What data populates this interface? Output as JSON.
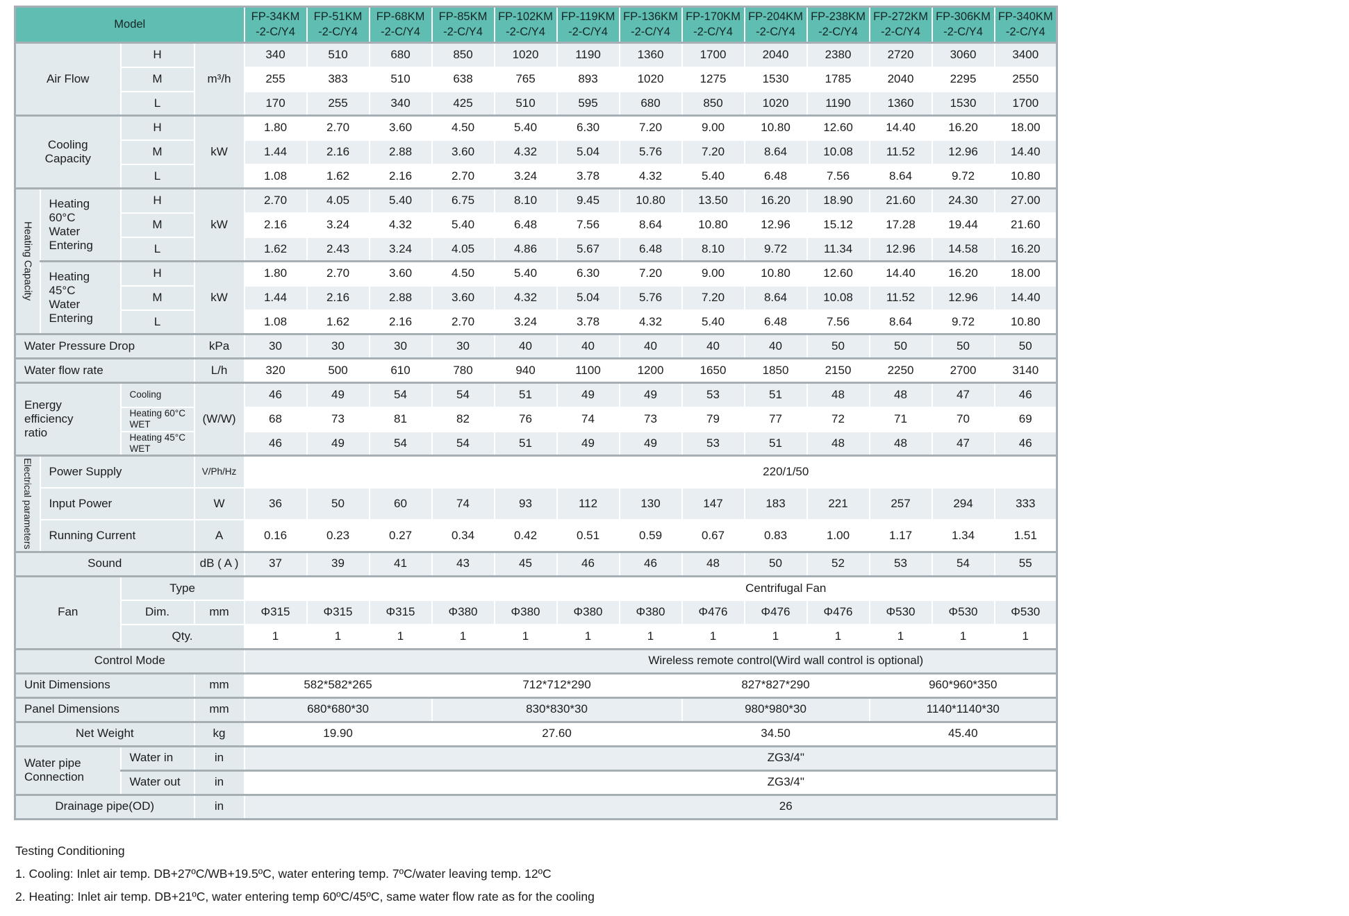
{
  "colors": {
    "header_teal": "#5FBDB2",
    "row_stripe": "#E8EEF1",
    "label_background": "#E2EAEE",
    "grid_line": "#A6AFB4"
  },
  "table": {
    "corner": "Model",
    "columns": [
      "FP-34KM\n-2-C/Y4",
      "FP-51KM\n-2-C/Y4",
      "FP-68KM\n-2-C/Y4",
      "FP-85KM\n-2-C/Y4",
      "FP-102KM\n-2-C/Y4",
      "FP-119KM\n-2-C/Y4",
      "FP-136KM\n-2-C/Y4",
      "FP-170KM\n-2-C/Y4",
      "FP-204KM\n-2-C/Y4",
      "FP-238KM\n-2-C/Y4",
      "FP-272KM\n-2-C/Y4",
      "FP-306KM\n-2-C/Y4",
      "FP-340KM\n-2-C/Y4"
    ],
    "rows": [
      {
        "id": "air-flow-h",
        "section_start": true,
        "labels": [
          {
            "text": "Air Flow",
            "colspan": 2,
            "rowspan": 3
          },
          {
            "text": "H"
          },
          {
            "text": "m³/h",
            "rowspan": 3
          }
        ],
        "values": [
          "340",
          "510",
          "680",
          "850",
          "1020",
          "1190",
          "1360",
          "1700",
          "2040",
          "2380",
          "2720",
          "3060",
          "3400"
        ]
      },
      {
        "id": "air-flow-m",
        "labels": [
          {
            "text": "M"
          }
        ],
        "values": [
          "255",
          "383",
          "510",
          "638",
          "765",
          "893",
          "1020",
          "1275",
          "1530",
          "1785",
          "2040",
          "2295",
          "2550"
        ]
      },
      {
        "id": "air-flow-l",
        "labels": [
          {
            "text": "L"
          }
        ],
        "values": [
          "170",
          "255",
          "340",
          "425",
          "510",
          "595",
          "680",
          "850",
          "1020",
          "1190",
          "1360",
          "1530",
          "1700"
        ]
      },
      {
        "id": "cooling-h",
        "section_start": true,
        "labels": [
          {
            "text": "Cooling\nCapacity",
            "colspan": 2,
            "rowspan": 3
          },
          {
            "text": "H"
          },
          {
            "text": "kW",
            "rowspan": 3
          }
        ],
        "values": [
          "1.80",
          "2.70",
          "3.60",
          "4.50",
          "5.40",
          "6.30",
          "7.20",
          "9.00",
          "10.80",
          "12.60",
          "14.40",
          "16.20",
          "18.00"
        ]
      },
      {
        "id": "cooling-m",
        "labels": [
          {
            "text": "M"
          }
        ],
        "values": [
          "1.44",
          "2.16",
          "2.88",
          "3.60",
          "4.32",
          "5.04",
          "5.76",
          "7.20",
          "8.64",
          "10.08",
          "11.52",
          "12.96",
          "14.40"
        ]
      },
      {
        "id": "cooling-l",
        "labels": [
          {
            "text": "L"
          }
        ],
        "values": [
          "1.08",
          "1.62",
          "2.16",
          "2.70",
          "3.24",
          "3.78",
          "4.32",
          "5.40",
          "6.48",
          "7.56",
          "8.64",
          "9.72",
          "10.80"
        ]
      },
      {
        "id": "heating60-h",
        "section_start": true,
        "labels": [
          {
            "text": "Heating Capacity",
            "rowspan": 6,
            "vertical": true,
            "size": 15
          },
          {
            "text": "Heating\n60°C\nWater\nEntering",
            "rowspan": 3,
            "align": "left"
          },
          {
            "text": "H"
          },
          {
            "text": "kW",
            "rowspan": 3
          }
        ],
        "values": [
          "2.70",
          "4.05",
          "5.40",
          "6.75",
          "8.10",
          "9.45",
          "10.80",
          "13.50",
          "16.20",
          "18.90",
          "21.60",
          "24.30",
          "27.00"
        ]
      },
      {
        "id": "heating60-m",
        "labels": [
          {
            "text": "M"
          }
        ],
        "values": [
          "2.16",
          "3.24",
          "4.32",
          "5.40",
          "6.48",
          "7.56",
          "8.64",
          "10.80",
          "12.96",
          "15.12",
          "17.28",
          "19.44",
          "21.60"
        ]
      },
      {
        "id": "heating60-l",
        "labels": [
          {
            "text": "L"
          }
        ],
        "values": [
          "1.62",
          "2.43",
          "3.24",
          "4.05",
          "4.86",
          "5.67",
          "6.48",
          "8.10",
          "9.72",
          "11.34",
          "12.96",
          "14.58",
          "16.20"
        ]
      },
      {
        "id": "heating45-h",
        "section_start": true,
        "labels": [
          {
            "text": "Heating\n45°C\nWater\nEntering",
            "rowspan": 3,
            "align": "left"
          },
          {
            "text": "H"
          },
          {
            "text": "kW",
            "rowspan": 3
          }
        ],
        "values": [
          "1.80",
          "2.70",
          "3.60",
          "4.50",
          "5.40",
          "6.30",
          "7.20",
          "9.00",
          "10.80",
          "12.60",
          "14.40",
          "16.20",
          "18.00"
        ]
      },
      {
        "id": "heating45-m",
        "labels": [
          {
            "text": "M"
          }
        ],
        "values": [
          "1.44",
          "2.16",
          "2.88",
          "3.60",
          "4.32",
          "5.04",
          "5.76",
          "7.20",
          "8.64",
          "10.08",
          "11.52",
          "12.96",
          "14.40"
        ]
      },
      {
        "id": "heating45-l",
        "labels": [
          {
            "text": "L"
          }
        ],
        "values": [
          "1.08",
          "1.62",
          "2.16",
          "2.70",
          "3.24",
          "3.78",
          "4.32",
          "5.40",
          "6.48",
          "7.56",
          "8.64",
          "9.72",
          "10.80"
        ]
      },
      {
        "id": "water-pressure-drop",
        "section_start": true,
        "labels": [
          {
            "text": "Water Pressure Drop",
            "colspan": 3,
            "align": "left"
          },
          {
            "text": "kPa"
          }
        ],
        "values": [
          "30",
          "30",
          "30",
          "30",
          "40",
          "40",
          "40",
          "40",
          "40",
          "50",
          "50",
          "50",
          "50"
        ]
      },
      {
        "id": "water-flow-rate",
        "section_start": true,
        "labels": [
          {
            "text": "Water flow rate",
            "colspan": 3,
            "align": "left"
          },
          {
            "text": "L/h"
          }
        ],
        "values": [
          "320",
          "500",
          "610",
          "780",
          "940",
          "1100",
          "1200",
          "1650",
          "1850",
          "2150",
          "2250",
          "2700",
          "3140"
        ]
      },
      {
        "id": "eer-cooling",
        "section_start": true,
        "labels": [
          {
            "text": "Energy\nefficiency\nratio",
            "colspan": 2,
            "rowspan": 3,
            "align": "left"
          },
          {
            "text": "Cooling",
            "align": "left",
            "small": true
          },
          {
            "text": "(W/W)",
            "rowspan": 3
          }
        ],
        "values": [
          "46",
          "49",
          "54",
          "54",
          "51",
          "49",
          "49",
          "53",
          "51",
          "48",
          "48",
          "47",
          "46"
        ]
      },
      {
        "id": "eer-heating60",
        "labels": [
          {
            "text": "Heating 60°C WET",
            "align": "left",
            "small": true
          }
        ],
        "values": [
          "68",
          "73",
          "81",
          "82",
          "76",
          "74",
          "73",
          "79",
          "77",
          "72",
          "71",
          "70",
          "69"
        ]
      },
      {
        "id": "eer-heating45",
        "labels": [
          {
            "text": "Heating 45°C WET",
            "align": "left",
            "small": true
          }
        ],
        "values": [
          "46",
          "49",
          "54",
          "54",
          "51",
          "49",
          "49",
          "53",
          "51",
          "48",
          "48",
          "47",
          "46"
        ]
      },
      {
        "id": "power-supply",
        "section_start": true,
        "labels": [
          {
            "text": "Electrical parameters",
            "rowspan": 3,
            "vertical": true
          },
          {
            "text": "Power Supply",
            "colspan": 2,
            "align": "left"
          },
          {
            "text": "V/Ph/Hz",
            "small": true
          }
        ],
        "merged": {
          "text": "220/1/50"
        }
      },
      {
        "id": "input-power",
        "labels": [
          {
            "text": "Input Power",
            "colspan": 2,
            "align": "left"
          },
          {
            "text": "W"
          }
        ],
        "values": [
          "36",
          "50",
          "60",
          "74",
          "93",
          "112",
          "130",
          "147",
          "183",
          "221",
          "257",
          "294",
          "333"
        ]
      },
      {
        "id": "running-current",
        "labels": [
          {
            "text": "Running Current",
            "colspan": 2,
            "align": "left"
          },
          {
            "text": "A"
          }
        ],
        "values": [
          "0.16",
          "0.23",
          "0.27",
          "0.34",
          "0.42",
          "0.51",
          "0.59",
          "0.67",
          "0.83",
          "1.00",
          "1.17",
          "1.34",
          "1.51"
        ]
      },
      {
        "id": "sound",
        "section_start": true,
        "labels": [
          {
            "text": "Sound",
            "colspan": 3
          },
          {
            "text": "dB ( A )"
          }
        ],
        "values": [
          "37",
          "39",
          "41",
          "43",
          "45",
          "46",
          "46",
          "48",
          "50",
          "52",
          "53",
          "54",
          "55"
        ]
      },
      {
        "id": "fan-type",
        "section_start": true,
        "labels": [
          {
            "text": "Fan",
            "colspan": 2,
            "rowspan": 3
          },
          {
            "text": "Type",
            "colspan": 2
          }
        ],
        "merged": {
          "text": "Centrifugal Fan"
        }
      },
      {
        "id": "fan-dim",
        "labels": [
          {
            "text": "Dim."
          },
          {
            "text": "mm"
          }
        ],
        "values": [
          "Φ315",
          "Φ315",
          "Φ315",
          "Φ380",
          "Φ380",
          "Φ380",
          "Φ380",
          "Φ476",
          "Φ476",
          "Φ476",
          "Φ530",
          "Φ530",
          "Φ530"
        ]
      },
      {
        "id": "fan-qty",
        "labels": [
          {
            "text": "Qty.",
            "colspan": 2
          }
        ],
        "values": [
          "1",
          "1",
          "1",
          "1",
          "1",
          "1",
          "1",
          "1",
          "1",
          "1",
          "1",
          "1",
          "1"
        ]
      },
      {
        "id": "control-mode",
        "section_start": true,
        "labels": [
          {
            "text": "Control Mode",
            "colspan": 4
          }
        ],
        "merged": {
          "text": "Wireless remote control(Wird wall control is optional)"
        }
      },
      {
        "id": "unit-dimensions",
        "section_start": true,
        "labels": [
          {
            "text": "Unit Dimensions",
            "colspan": 3,
            "align": "left"
          },
          {
            "text": "mm"
          }
        ],
        "groups": [
          {
            "text": "582*582*265",
            "span": 3
          },
          {
            "text": "712*712*290",
            "span": 4
          },
          {
            "text": "827*827*290",
            "span": 3
          },
          {
            "text": "960*960*350",
            "span": 3
          }
        ]
      },
      {
        "id": "panel-dimensions",
        "section_start": true,
        "labels": [
          {
            "text": "Panel Dimensions",
            "colspan": 3,
            "align": "left"
          },
          {
            "text": "mm"
          }
        ],
        "groups": [
          {
            "text": "680*680*30",
            "span": 3
          },
          {
            "text": "830*830*30",
            "span": 4
          },
          {
            "text": "980*980*30",
            "span": 3
          },
          {
            "text": "1140*1140*30",
            "span": 3
          }
        ]
      },
      {
        "id": "net-weight",
        "section_start": true,
        "labels": [
          {
            "text": "Net Weight",
            "colspan": 3
          },
          {
            "text": "kg"
          }
        ],
        "groups": [
          {
            "text": "19.90",
            "span": 3
          },
          {
            "text": "27.60",
            "span": 4
          },
          {
            "text": "34.50",
            "span": 3
          },
          {
            "text": "45.40",
            "span": 3
          }
        ]
      },
      {
        "id": "water-in",
        "section_start": true,
        "labels": [
          {
            "text": "Water pipe\nConnection",
            "colspan": 2,
            "rowspan": 2,
            "align": "left"
          },
          {
            "text": "Water in",
            "align": "left"
          },
          {
            "text": "in"
          }
        ],
        "merged": {
          "text": "ZG3/4\""
        }
      },
      {
        "id": "water-out",
        "section_start": true,
        "labels": [
          {
            "text": "Water out",
            "align": "left"
          },
          {
            "text": "in"
          }
        ],
        "merged": {
          "text": "ZG3/4\""
        }
      },
      {
        "id": "drainage-pipe",
        "section_start": true,
        "labels": [
          {
            "text": "Drainage pipe(OD)",
            "colspan": 3
          },
          {
            "text": "in"
          }
        ],
        "merged": {
          "text": "26"
        }
      }
    ]
  },
  "footer": {
    "title": "Testing Conditioning",
    "notes": [
      "1. Cooling: Inlet air temp. DB+27ºC/WB+19.5ºC, water entering temp. 7ºC/water leaving temp. 12ºC",
      "2. Heating: Inlet air temp. DB+21ºC, water entering temp 60ºC/45ºC, same water flow rate as for the cooling"
    ]
  }
}
